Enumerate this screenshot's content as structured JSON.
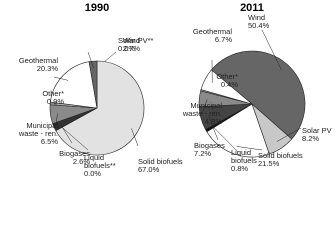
{
  "chart_data": [
    {
      "type": "pie",
      "title": "1990",
      "categories": [
        "Solar PV**",
        "Solid biofuels",
        "Liquid biofuels**",
        "Biogases",
        "Municipal waste - ren.",
        "Other*",
        "Geothermal",
        "Wind"
      ],
      "values": [
        0.0,
        67.0,
        0.0,
        2.6,
        6.5,
        0.9,
        20.3,
        2.7
      ],
      "value_labels": [
        "0.0%",
        "67.0%",
        "0.0%",
        "2.6%",
        "6.5%",
        "0.9%",
        "20.3%",
        "2.7%"
      ],
      "colors": [
        "#bbbbbb",
        "#e2e2e2",
        "#111111",
        "#333333",
        "#8a8a8a",
        "#aaaaaa",
        "#ffffff",
        "#666666"
      ]
    },
    {
      "type": "pie",
      "title": "2011",
      "categories": [
        "Wind",
        "Solar PV",
        "Solid biofuels",
        "Liquid biofuels",
        "Biogases",
        "Municipal waste - ren.",
        "Other*",
        "Geothermal"
      ],
      "values": [
        50.4,
        8.2,
        21.5,
        0.8,
        7.2,
        4.8,
        0.4,
        6.7
      ],
      "value_labels": [
        "50.4%",
        "8.2%",
        "21.5%",
        "0.8%",
        "7.2%",
        "4.8%",
        "0.4%",
        "6.7%"
      ],
      "colors": [
        "#666666",
        "#c8c8c8",
        "#ffffff",
        "#111111",
        "#444444",
        "#8a8a8a",
        "#aaaaaa",
        "#ffffff"
      ]
    }
  ]
}
